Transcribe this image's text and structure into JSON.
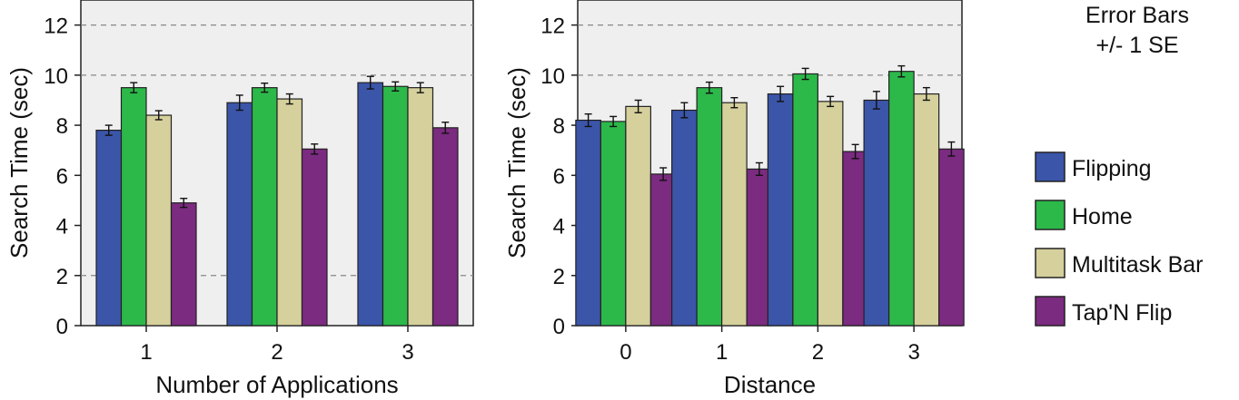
{
  "note": {
    "line1": "Error Bars",
    "line2": "+/- 1 SE"
  },
  "legend": {
    "items": [
      {
        "label": "Flipping",
        "color": "#3b55a9"
      },
      {
        "label": "Home",
        "color": "#2db84a"
      },
      {
        "label": "Multitask Bar",
        "color": "#d5d09c"
      },
      {
        "label": "Tap'N Flip",
        "color": "#7b2b80"
      }
    ]
  },
  "chart_data": [
    {
      "type": "bar",
      "xlabel": "Number of Applications",
      "ylabel": "Search Time (sec)",
      "ylim": [
        0,
        13
      ],
      "yticks": [
        "0",
        "2",
        "4",
        "6",
        "8",
        "10",
        "12"
      ],
      "grid": "dashed horizontal at 2, 10, 12",
      "categories": [
        "1",
        "2",
        "3"
      ],
      "series": [
        {
          "name": "Flipping",
          "values": [
            7.8,
            8.9,
            9.7
          ],
          "se": [
            0.2,
            0.3,
            0.25
          ]
        },
        {
          "name": "Home",
          "values": [
            9.5,
            9.5,
            9.55
          ],
          "se": [
            0.2,
            0.18,
            0.18
          ]
        },
        {
          "name": "Multitask Bar",
          "values": [
            8.4,
            9.05,
            9.5
          ],
          "se": [
            0.18,
            0.2,
            0.2
          ]
        },
        {
          "name": "Tap'N Flip",
          "values": [
            4.9,
            7.05,
            7.9
          ],
          "se": [
            0.18,
            0.2,
            0.22
          ]
        }
      ]
    },
    {
      "type": "bar",
      "xlabel": "Distance",
      "ylabel": "Search Time (sec)",
      "ylim": [
        0,
        13
      ],
      "yticks": [
        "0",
        "2",
        "4",
        "6",
        "8",
        "10",
        "12"
      ],
      "grid": "dashed horizontal at 2, 10, 12",
      "categories": [
        "0",
        "1",
        "2",
        "3"
      ],
      "series": [
        {
          "name": "Flipping",
          "values": [
            8.2,
            8.6,
            9.25,
            9.0
          ],
          "se": [
            0.25,
            0.3,
            0.3,
            0.35
          ]
        },
        {
          "name": "Home",
          "values": [
            8.15,
            9.5,
            10.05,
            10.15
          ],
          "se": [
            0.2,
            0.22,
            0.22,
            0.22
          ]
        },
        {
          "name": "Multitask Bar",
          "values": [
            8.75,
            8.9,
            8.95,
            9.25
          ],
          "se": [
            0.25,
            0.2,
            0.2,
            0.25
          ]
        },
        {
          "name": "Tap'N Flip",
          "values": [
            6.05,
            6.25,
            6.95,
            7.05
          ],
          "se": [
            0.25,
            0.25,
            0.28,
            0.28
          ]
        }
      ]
    }
  ]
}
